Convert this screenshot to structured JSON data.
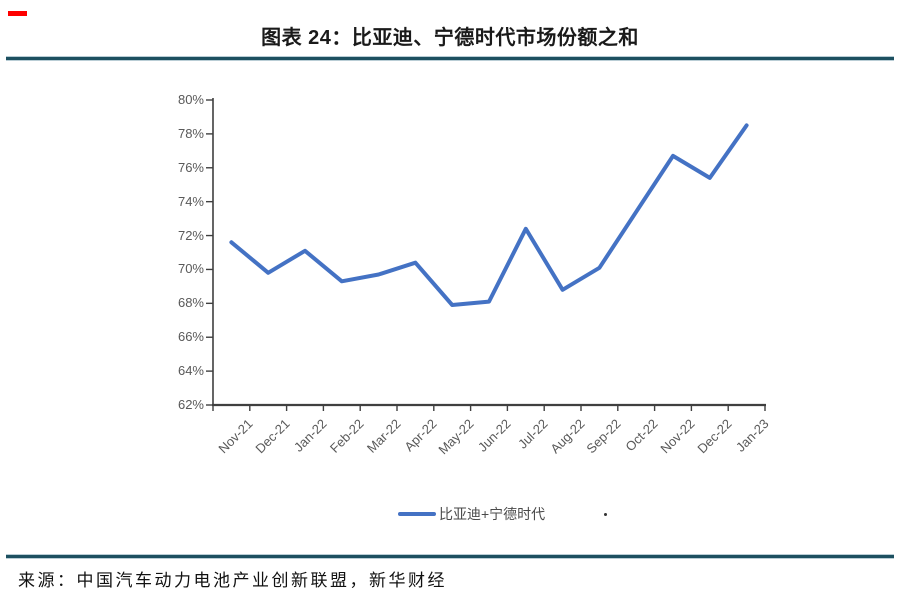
{
  "page": {
    "title": "图表 24：比亚迪、宁德时代市场份额之和",
    "source": "来源：中国汽车动力电池产业创新联盟，新华财经",
    "stray_dot": "."
  },
  "colors": {
    "accent_blue": "#4472C4",
    "axis": "#3f3f3f",
    "tick_text": "#595959",
    "separator_dark": "#1d5060",
    "separator_light": "#b9cdd5",
    "red_mark": "#fe0000"
  },
  "chart_data": {
    "type": "line",
    "title": "图表 24：比亚迪、宁德时代市场份额之和",
    "categories": [
      "Nov-21",
      "Dec-21",
      "Jan-22",
      "Feb-22",
      "Mar-22",
      "Apr-22",
      "May-22",
      "Jun-22",
      "Jul-22",
      "Aug-22",
      "Sep-22",
      "Oct-22",
      "Nov-22",
      "Dec-22",
      "Jan-23"
    ],
    "series": [
      {
        "name": "比亚迪+宁德时代",
        "color": "#4472C4",
        "values": [
          71.6,
          69.8,
          71.1,
          69.3,
          69.7,
          70.4,
          67.9,
          68.1,
          72.4,
          68.8,
          70.1,
          73.4,
          76.7,
          75.4,
          78.5
        ]
      }
    ],
    "ylabel": "",
    "xlabel": "",
    "ylim": [
      62,
      80
    ],
    "y_ticks": [
      "62%",
      "64%",
      "66%",
      "68%",
      "70%",
      "72%",
      "74%",
      "76%",
      "78%",
      "80%"
    ],
    "y_tick_values": [
      62,
      64,
      66,
      68,
      70,
      72,
      74,
      76,
      78,
      80
    ],
    "y_tick_unit": "%",
    "x_label_rotation_deg": 45,
    "grid": false,
    "legend_position": "bottom"
  }
}
